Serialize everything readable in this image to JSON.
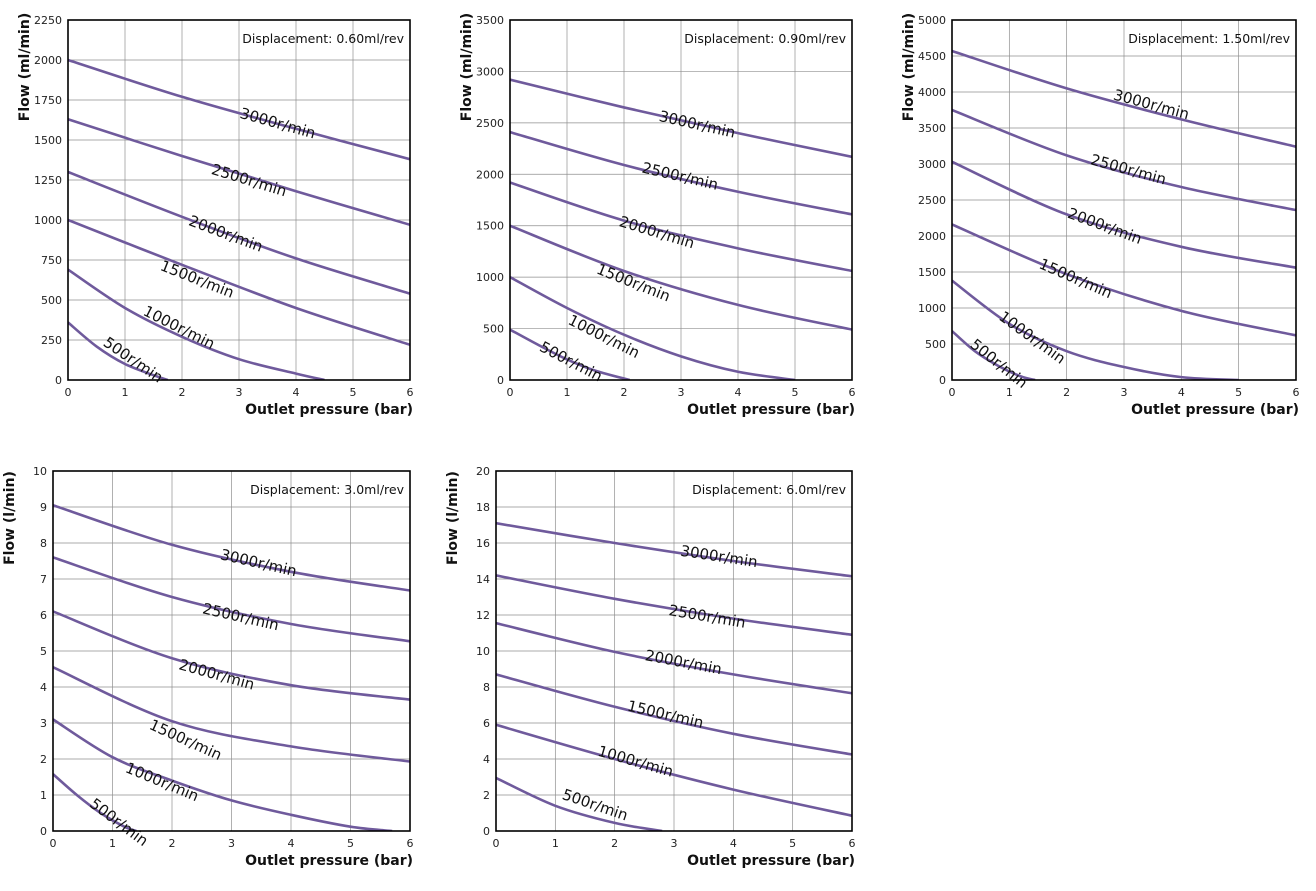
{
  "colors": {
    "curve": "#6f5a9c",
    "grid": "#8f8f8f",
    "frame": "#000000"
  },
  "chart_data": [
    {
      "type": "line",
      "displacement_label": "Displacement:",
      "displacement_value": "0.60ml/rev",
      "xlabel": "Outlet pressure (bar)",
      "ylabel": "Flow (ml/min)",
      "xlim": [
        0,
        6
      ],
      "ylim": [
        0,
        2250
      ],
      "xticks": [
        0,
        1,
        2,
        3,
        4,
        5,
        6
      ],
      "yticks": [
        0,
        250,
        500,
        750,
        1000,
        1250,
        1500,
        1750,
        2000,
        2250
      ],
      "yticklabels": [
        "0",
        "250",
        "500",
        "750",
        "1000",
        "1250",
        "1500",
        "1750",
        "2000",
        "2250"
      ],
      "series": [
        {
          "name": "3000r/min",
          "x": [
            0,
            2,
            4,
            6
          ],
          "y": [
            2000,
            1770,
            1570,
            1380
          ],
          "label_at": [
            3.0,
            1640
          ]
        },
        {
          "name": "2500r/min",
          "x": [
            0,
            2,
            4,
            6
          ],
          "y": [
            1630,
            1400,
            1180,
            970
          ],
          "label_at": [
            2.5,
            1290
          ]
        },
        {
          "name": "2000r/min",
          "x": [
            0,
            2,
            4,
            6
          ],
          "y": [
            1300,
            1020,
            760,
            540
          ],
          "label_at": [
            2.1,
            970
          ]
        },
        {
          "name": "1500r/min",
          "x": [
            0,
            2,
            4,
            6
          ],
          "y": [
            1000,
            720,
            450,
            220
          ],
          "label_at": [
            1.6,
            690
          ]
        },
        {
          "name": "1000r/min",
          "x": [
            0,
            1,
            2,
            3,
            4,
            4.5
          ],
          "y": [
            690,
            450,
            270,
            130,
            40,
            0
          ],
          "label_at": [
            1.3,
            410
          ]
        },
        {
          "name": "500r/min",
          "x": [
            0,
            0.5,
            1,
            1.5,
            1.75
          ],
          "y": [
            360,
            210,
            100,
            30,
            0
          ],
          "label_at": [
            0.6,
            220
          ]
        }
      ]
    },
    {
      "type": "line",
      "displacement_label": "Displacement:",
      "displacement_value": "0.90ml/rev",
      "xlabel": "Outlet pressure (bar)",
      "ylabel": "Flow (ml/min)",
      "xlim": [
        0,
        6
      ],
      "ylim": [
        0,
        3500
      ],
      "xticks": [
        0,
        1,
        2,
        3,
        4,
        5,
        6
      ],
      "yticks": [
        0,
        500,
        1000,
        1500,
        2000,
        2500,
        3000,
        3500
      ],
      "yticklabels": [
        "0",
        "500",
        "1000",
        "1500",
        "2000",
        "2500",
        "3000",
        "3500"
      ],
      "series": [
        {
          "name": "3000r/min",
          "x": [
            0,
            2,
            4,
            6
          ],
          "y": [
            2920,
            2650,
            2400,
            2170
          ],
          "label_at": [
            2.6,
            2520
          ]
        },
        {
          "name": "2500r/min",
          "x": [
            0,
            2,
            4,
            6
          ],
          "y": [
            2410,
            2090,
            1830,
            1610
          ],
          "label_at": [
            2.3,
            2020
          ]
        },
        {
          "name": "2000r/min",
          "x": [
            0,
            2,
            4,
            6
          ],
          "y": [
            1920,
            1550,
            1280,
            1060
          ],
          "label_at": [
            1.9,
            1500
          ]
        },
        {
          "name": "1500r/min",
          "x": [
            0,
            2,
            4,
            6
          ],
          "y": [
            1500,
            1060,
            730,
            490
          ],
          "label_at": [
            1.5,
            1040
          ]
        },
        {
          "name": "1000r/min",
          "x": [
            0,
            1,
            2,
            3,
            4,
            5
          ],
          "y": [
            1000,
            700,
            440,
            230,
            80,
            0
          ],
          "label_at": [
            1.0,
            550
          ]
        },
        {
          "name": "500r/min",
          "x": [
            0,
            0.5,
            1,
            1.5,
            2.1
          ],
          "y": [
            490,
            340,
            200,
            90,
            0
          ],
          "label_at": [
            0.5,
            290
          ]
        }
      ]
    },
    {
      "type": "line",
      "displacement_label": "Displacement:",
      "displacement_value": "1.50ml/rev",
      "xlabel": "Outlet pressure (bar)",
      "ylabel": "Flow (ml/min)",
      "xlim": [
        0,
        6
      ],
      "ylim": [
        0,
        5000
      ],
      "xticks": [
        0,
        1,
        2,
        3,
        4,
        5,
        6
      ],
      "yticks": [
        0,
        500,
        1000,
        1500,
        2000,
        2500,
        3000,
        3500,
        4000,
        4500,
        5000
      ],
      "yticklabels": [
        "0",
        "500",
        "1000",
        "1500",
        "2000",
        "2500",
        "3000",
        "3500",
        "4000",
        "4500",
        "5000"
      ],
      "series": [
        {
          "name": "3000r/min",
          "x": [
            0,
            2,
            4,
            6
          ],
          "y": [
            4570,
            4050,
            3620,
            3240
          ],
          "label_at": [
            2.8,
            3900
          ]
        },
        {
          "name": "2500r/min",
          "x": [
            0,
            2,
            4,
            6
          ],
          "y": [
            3750,
            3120,
            2680,
            2360
          ],
          "label_at": [
            2.4,
            3000
          ]
        },
        {
          "name": "2000r/min",
          "x": [
            0,
            2,
            4,
            6
          ],
          "y": [
            3030,
            2300,
            1850,
            1560
          ],
          "label_at": [
            2.0,
            2260
          ]
        },
        {
          "name": "1500r/min",
          "x": [
            0,
            2,
            4,
            6
          ],
          "y": [
            2160,
            1470,
            960,
            620
          ],
          "label_at": [
            1.5,
            1560
          ]
        },
        {
          "name": "1000r/min",
          "x": [
            0,
            1,
            2,
            3,
            4,
            5
          ],
          "y": [
            1380,
            780,
            400,
            180,
            40,
            0
          ],
          "label_at": [
            0.8,
            850
          ]
        },
        {
          "name": "500r/min",
          "x": [
            0,
            0.4,
            0.8,
            1.2,
            1.45
          ],
          "y": [
            680,
            400,
            200,
            50,
            0
          ],
          "label_at": [
            0.3,
            470
          ]
        }
      ]
    },
    {
      "type": "line",
      "displacement_label": "Displacement:",
      "displacement_value": "3.0ml/rev",
      "xlabel": "Outlet pressure (bar)",
      "ylabel": "Flow (l/min)",
      "xlim": [
        0,
        6
      ],
      "ylim": [
        0,
        10
      ],
      "xticks": [
        0,
        1,
        2,
        3,
        4,
        5,
        6
      ],
      "yticks": [
        0,
        1,
        2,
        3,
        4,
        5,
        6,
        7,
        8,
        9,
        10
      ],
      "yticklabels": [
        "0",
        "1",
        "2",
        "3",
        "4",
        "5",
        "6",
        "7",
        "8",
        "9",
        "10"
      ],
      "series": [
        {
          "name": "3000r/min",
          "x": [
            0,
            2,
            4,
            6
          ],
          "y": [
            9.05,
            7.95,
            7.2,
            6.68
          ],
          "label_at": [
            2.8,
            7.55
          ]
        },
        {
          "name": "2500r/min",
          "x": [
            0,
            2,
            4,
            6
          ],
          "y": [
            7.6,
            6.5,
            5.75,
            5.27
          ],
          "label_at": [
            2.5,
            6.05
          ]
        },
        {
          "name": "2000r/min",
          "x": [
            0,
            2,
            4,
            6
          ],
          "y": [
            6.1,
            4.8,
            4.05,
            3.65
          ],
          "label_at": [
            2.1,
            4.5
          ]
        },
        {
          "name": "1500r/min",
          "x": [
            0,
            2,
            4,
            6
          ],
          "y": [
            4.55,
            3.05,
            2.35,
            1.93
          ],
          "label_at": [
            1.6,
            2.85
          ]
        },
        {
          "name": "1000r/min",
          "x": [
            0,
            1,
            2,
            3,
            4,
            5,
            5.7
          ],
          "y": [
            3.1,
            2.05,
            1.4,
            0.85,
            0.45,
            0.12,
            0
          ],
          "label_at": [
            1.2,
            1.65
          ]
        },
        {
          "name": "500r/min",
          "x": [
            0,
            0.4,
            0.8,
            1.2,
            1.4
          ],
          "y": [
            1.58,
            1.0,
            0.5,
            0.12,
            0
          ],
          "label_at": [
            0.6,
            0.7
          ]
        }
      ]
    },
    {
      "type": "line",
      "displacement_label": "Displacement:",
      "displacement_value": "6.0ml/rev",
      "xlabel": "Outlet pressure (bar)",
      "ylabel": "Flow (l/min)",
      "xlim": [
        0,
        6
      ],
      "ylim": [
        0,
        20
      ],
      "xticks": [
        0,
        1,
        2,
        3,
        4,
        5,
        6
      ],
      "yticks": [
        0,
        2,
        4,
        6,
        8,
        10,
        12,
        14,
        16,
        18,
        20
      ],
      "yticklabels": [
        "0",
        "2",
        "4",
        "6",
        "8",
        "10",
        "12",
        "14",
        "16",
        "18",
        "20"
      ],
      "series": [
        {
          "name": "3000r/min",
          "x": [
            0,
            2,
            4,
            6
          ],
          "y": [
            17.1,
            16.0,
            15.0,
            14.15
          ],
          "label_at": [
            3.1,
            15.3
          ]
        },
        {
          "name": "2500r/min",
          "x": [
            0,
            2,
            4,
            6
          ],
          "y": [
            14.2,
            12.9,
            11.8,
            10.9
          ],
          "label_at": [
            2.9,
            12.0
          ]
        },
        {
          "name": "2000r/min",
          "x": [
            0,
            2,
            4,
            6
          ],
          "y": [
            11.55,
            9.95,
            8.7,
            7.65
          ],
          "label_at": [
            2.5,
            9.5
          ]
        },
        {
          "name": "1500r/min",
          "x": [
            0,
            2,
            4,
            6
          ],
          "y": [
            8.7,
            6.9,
            5.4,
            4.25
          ],
          "label_at": [
            2.2,
            6.7
          ]
        },
        {
          "name": "1000r/min",
          "x": [
            0,
            2,
            4,
            6
          ],
          "y": [
            5.9,
            4.0,
            2.3,
            0.85
          ],
          "label_at": [
            1.7,
            4.2
          ]
        },
        {
          "name": "500r/min",
          "x": [
            0,
            1,
            2,
            2.8
          ],
          "y": [
            2.95,
            1.4,
            0.45,
            0
          ],
          "label_at": [
            1.1,
            1.8
          ]
        }
      ]
    }
  ]
}
